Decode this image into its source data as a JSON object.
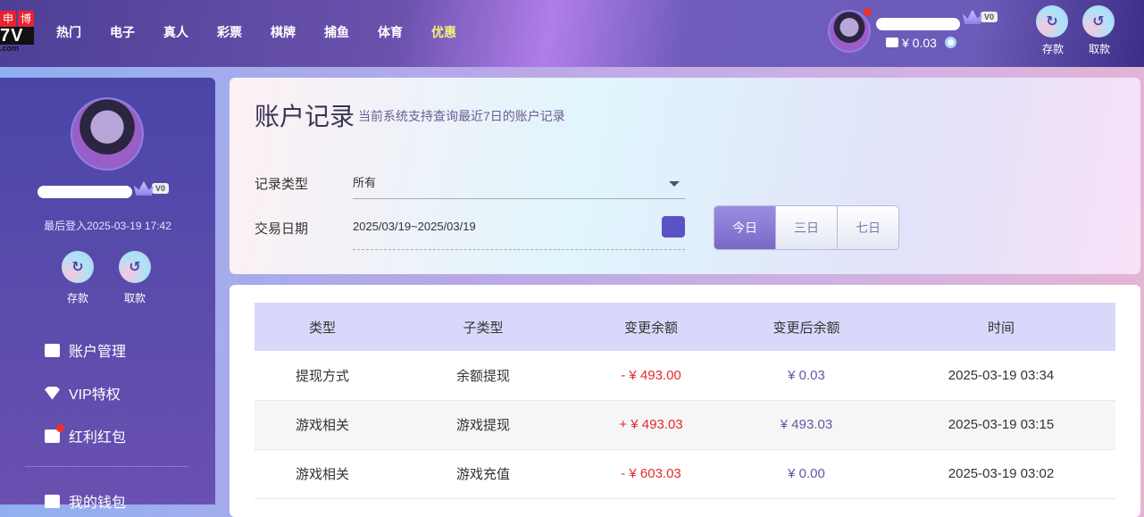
{
  "header": {
    "logo": {
      "line1": [
        "申",
        "博"
      ],
      "line2": "7V",
      "line3": ".com"
    },
    "nav": [
      "热门",
      "电子",
      "真人",
      "彩票",
      "棋牌",
      "捕鱼",
      "体育",
      "优惠"
    ],
    "highlight_color": "#f5f07a",
    "user": {
      "vip_level": "V0",
      "balance": "¥ 0.03"
    },
    "deposit_label": "存款",
    "withdraw_label": "取款"
  },
  "sidebar": {
    "vip_level": "V0",
    "last_login": "最后登入2025-03-19 17:42",
    "deposit_label": "存款",
    "withdraw_label": "取款",
    "items": [
      {
        "label": "账户管理",
        "icon": "card-icon"
      },
      {
        "label": "VIP特权",
        "icon": "diamond-icon"
      },
      {
        "label": "红利红包",
        "icon": "envelope-icon",
        "badge": true
      },
      {
        "label": "我的钱包",
        "icon": "wallet-icon"
      }
    ]
  },
  "filter": {
    "title": "账户记录",
    "subtitle": "当前系统支持查询最近7日的账户记录",
    "type_label": "记录类型",
    "type_value": "所有",
    "date_label": "交易日期",
    "date_value": "2025/03/19~2025/03/19",
    "ranges": [
      "今日",
      "三日",
      "七日"
    ],
    "active_range": "今日"
  },
  "table": {
    "headers": [
      "类型",
      "子类型",
      "变更余额",
      "变更后余额",
      "时间"
    ],
    "rows": [
      {
        "type": "提现方式",
        "subtype": "余额提现",
        "change": "- ¥ 493.00",
        "balance": "¥ 0.03",
        "time": "2025-03-19 03:34"
      },
      {
        "type": "游戏相关",
        "subtype": "游戏提现",
        "change": "+ ¥ 493.03",
        "balance": "¥ 493.03",
        "time": "2025-03-19 03:15"
      },
      {
        "type": "游戏相关",
        "subtype": "游戏充值",
        "change": "- ¥ 603.03",
        "balance": "¥ 0.00",
        "time": "2025-03-19 03:02"
      }
    ]
  }
}
